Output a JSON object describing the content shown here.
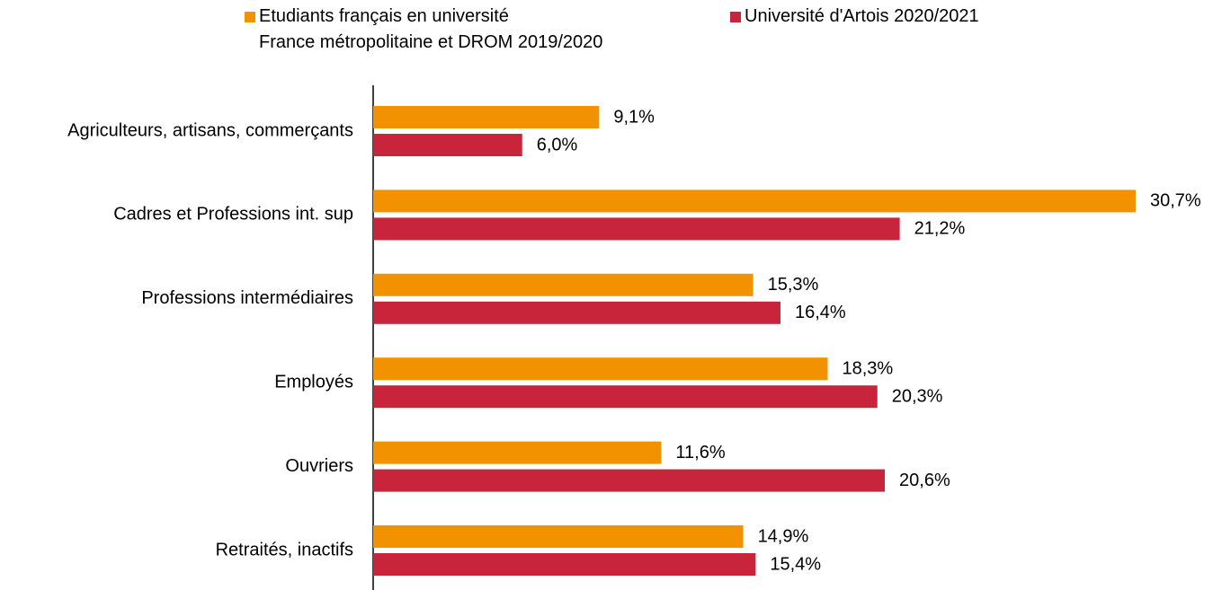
{
  "chart_data": {
    "type": "bar",
    "orientation": "horizontal",
    "categories": [
      "Agriculteurs, artisans, commerçants",
      "Cadres et Professions int. sup",
      "Professions intermédiaires",
      "Employés",
      "Ouvriers",
      "Retraités, inactifs"
    ],
    "series": [
      {
        "name": "Etudiants français en université\nFrance métropolitaine et DROM 2019/2020",
        "color": "#f39200",
        "values": [
          9.1,
          30.7,
          15.3,
          18.3,
          11.6,
          14.9
        ],
        "value_labels": [
          "9,1%",
          "30,7%",
          "15,3%",
          "18,3%",
          "11,6%",
          "14,9%"
        ]
      },
      {
        "name": "Université d'Artois 2020/2021",
        "color": "#c8243c",
        "values": [
          6.0,
          21.2,
          16.4,
          20.3,
          20.6,
          15.4
        ],
        "value_labels": [
          "6,0%",
          "21,2%",
          "16,4%",
          "20,3%",
          "20,6%",
          "15,4%"
        ]
      }
    ]
  }
}
